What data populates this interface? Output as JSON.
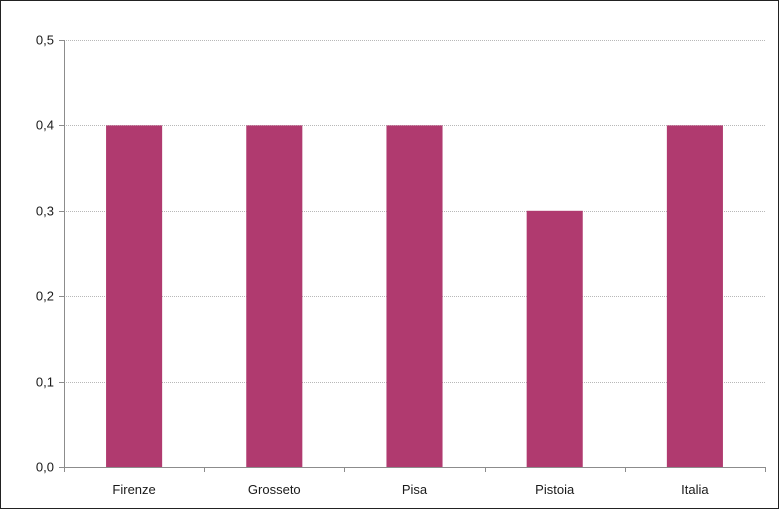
{
  "chart_data": {
    "type": "bar",
    "categories": [
      "Firenze",
      "Grosseto",
      "Pisa",
      "Pistoia",
      "Italia"
    ],
    "values": [
      0.4,
      0.4,
      0.4,
      0.3,
      0.4
    ],
    "title": "",
    "xlabel": "",
    "ylabel": "",
    "ylim": [
      0,
      0.5
    ],
    "yticks": [
      "0,0",
      "0,1",
      "0,2",
      "0,3",
      "0,4",
      "0,5"
    ],
    "grid": true,
    "bar_color": "#b03a6f",
    "grid_color": "#b8b8b8",
    "axis_color": "#8c8c8c"
  }
}
